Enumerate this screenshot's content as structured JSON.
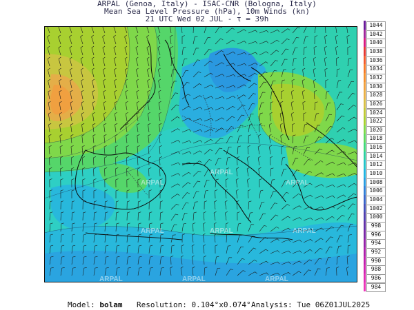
{
  "header": {
    "line1": "ARPAL (Genoa, Italy)  -  ISAC-CNR (Bologna, Italy)",
    "line2": "Mean Sea Level Pressure (hPa), 10m Winds (kn)",
    "line3": "21 UTC Wed 02 JUL  -  τ = 39h"
  },
  "watermark": "ARPAL",
  "colorbar": {
    "labels": [
      "1044",
      "1042",
      "1040",
      "1038",
      "1036",
      "1034",
      "1032",
      "1030",
      "1028",
      "1026",
      "1024",
      "1022",
      "1020",
      "1018",
      "1016",
      "1014",
      "1012",
      "1010",
      "1008",
      "1006",
      "1004",
      "1002",
      "1000",
      "998",
      "996",
      "994",
      "992",
      "990",
      "988",
      "986",
      "984"
    ],
    "colors": [
      "#6a1b9a",
      "#a1279c",
      "#d81b82",
      "#e53935",
      "#f25c2e",
      "#f57a2a",
      "#f39030",
      "#f0a040",
      "#e9b048",
      "#d8bf48",
      "#c0c838",
      "#a8d030",
      "#7fd84a",
      "#5fd85e",
      "#42d87a",
      "#2ecfa0",
      "#25c3c8",
      "#22b4e0",
      "#2a9de0",
      "#3280d6",
      "#3a66c8",
      "#4350b8",
      "#5040ae",
      "#6232a8",
      "#7a28a6",
      "#9423a8",
      "#ad20aa",
      "#c020ad",
      "#d025b0",
      "#e02db5",
      "#ec38ba"
    ]
  },
  "footer": {
    "model_label": "Model:",
    "model_value": "bolam",
    "resolution_label": "Resolution:",
    "resolution_value": "0.104°x0.074°",
    "analysis_label": "Analysis:",
    "analysis_value": "Tue 06Z01JUL2025"
  }
}
